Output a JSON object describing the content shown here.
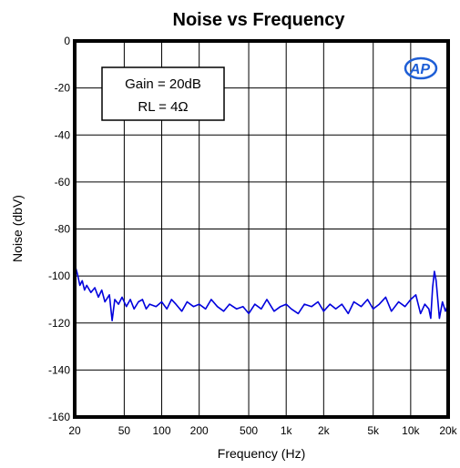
{
  "chart_data": {
    "type": "line",
    "title": "Noise vs Frequency",
    "xlabel": "Frequency (Hz)",
    "ylabel": "Noise (dbV)",
    "x_scale": "log",
    "xlim": [
      20,
      20000
    ],
    "ylim": [
      -160,
      0
    ],
    "x_ticks": [
      20,
      50,
      100,
      200,
      500,
      1000,
      2000,
      5000,
      10000,
      20000
    ],
    "x_tick_labels": [
      "20",
      "50",
      "100",
      "200",
      "500",
      "1k",
      "2k",
      "5k",
      "10k",
      "20k"
    ],
    "y_ticks": [
      0,
      -20,
      -40,
      -60,
      -80,
      -100,
      -120,
      -140,
      -160
    ],
    "y_tick_labels": [
      "0",
      "-20",
      "-40",
      "-60",
      "-80",
      "-100",
      "-120",
      "-140",
      "-160"
    ],
    "grid": true,
    "annotation_lines": [
      "Gain = 20dB",
      "RL = 4Ω"
    ],
    "logo_text": "AP",
    "series": [
      {
        "color": "#0000dd",
        "x": [
          20,
          21,
          22,
          23,
          24,
          25,
          27,
          29,
          31,
          33,
          35,
          38,
          40,
          42,
          45,
          48,
          52,
          56,
          60,
          65,
          70,
          75,
          80,
          90,
          100,
          110,
          120,
          130,
          145,
          160,
          180,
          200,
          225,
          250,
          280,
          315,
          350,
          400,
          450,
          500,
          560,
          630,
          700,
          800,
          900,
          1000,
          1100,
          1250,
          1400,
          1600,
          1800,
          2000,
          2250,
          2500,
          2800,
          3150,
          3500,
          4000,
          4500,
          5000,
          5600,
          6300,
          7000,
          8000,
          9000,
          10000,
          11000,
          12000,
          13000,
          14000,
          14500,
          15000,
          15500,
          16000,
          16500,
          17000,
          18000,
          19000,
          20000
        ],
        "values": [
          -95,
          -99,
          -104,
          -102,
          -106,
          -104,
          -107,
          -105,
          -109,
          -106,
          -111,
          -108,
          -119,
          -110,
          -112,
          -109,
          -113,
          -110,
          -114,
          -111,
          -110,
          -114,
          -112,
          -113,
          -111,
          -114,
          -110,
          -112,
          -115,
          -111,
          -113,
          -112,
          -114,
          -110,
          -113,
          -115,
          -112,
          -114,
          -113,
          -116,
          -112,
          -114,
          -110,
          -115,
          -113,
          -112,
          -114,
          -116,
          -112,
          -113,
          -111,
          -115,
          -112,
          -114,
          -112,
          -116,
          -111,
          -113,
          -110,
          -114,
          -112,
          -109,
          -115,
          -111,
          -113,
          -110,
          -108,
          -116,
          -112,
          -114,
          -118,
          -105,
          -98,
          -102,
          -110,
          -118,
          -111,
          -115,
          -112
        ]
      }
    ]
  }
}
